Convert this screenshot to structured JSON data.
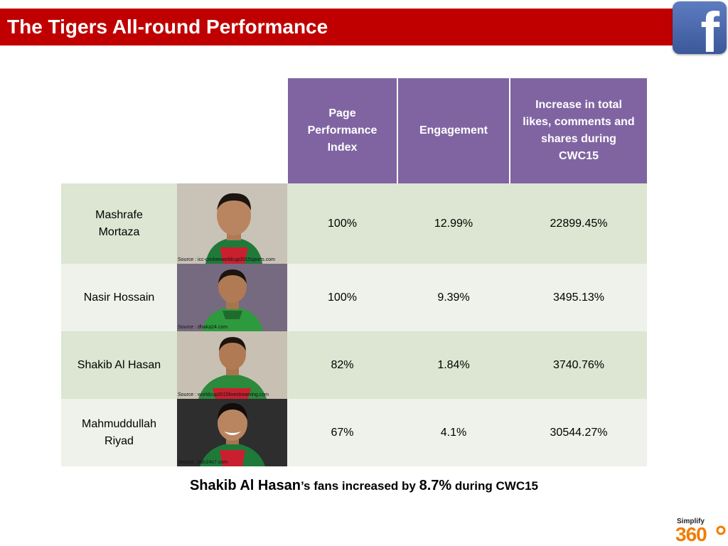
{
  "title": "The Tigers All-round Performance",
  "logo": {
    "icon": "facebook-icon",
    "letter": "f"
  },
  "table": {
    "headers": [
      [
        "Page",
        "Performance",
        "Index"
      ],
      [
        "Engagement"
      ],
      [
        "Increase in total",
        "likes, comments and",
        "shares during",
        "CWC15"
      ]
    ],
    "rows": [
      {
        "name": [
          "Mashrafe",
          "Mortaza"
        ],
        "source": "Source : icc-cricketworldcup2015sports.com",
        "page_index": "100%",
        "engagement": "12.99%",
        "increase": "22899.45%"
      },
      {
        "name": [
          "Nasir Hossain"
        ],
        "source": "Source : dhaka24.com",
        "page_index": "100%",
        "engagement": "9.39%",
        "increase": "3495.13%"
      },
      {
        "name": [
          "Shakib Al Hasan"
        ],
        "source": "Source : worldcup2015livestreaming.com",
        "page_index": "82%",
        "engagement": "1.84%",
        "increase": "3740.76%"
      },
      {
        "name": [
          "Mahmuddullah",
          "Riyad"
        ],
        "source": "Source : bdn24x7.com",
        "page_index": "67%",
        "engagement": "4.1%",
        "increase": "30544.27%"
      }
    ]
  },
  "caption": {
    "name": "Shakib Al Hasan",
    "mid": "’s fans increased by ",
    "value": "8.7%",
    "end": " during CWC15"
  },
  "brand": {
    "top": "Simplify",
    "bottom": "360"
  },
  "colors": {
    "title_bg": "#c00000",
    "header_bg": "#8064a2",
    "row_dark": "#dce6d2",
    "row_light": "#eef2ea"
  }
}
